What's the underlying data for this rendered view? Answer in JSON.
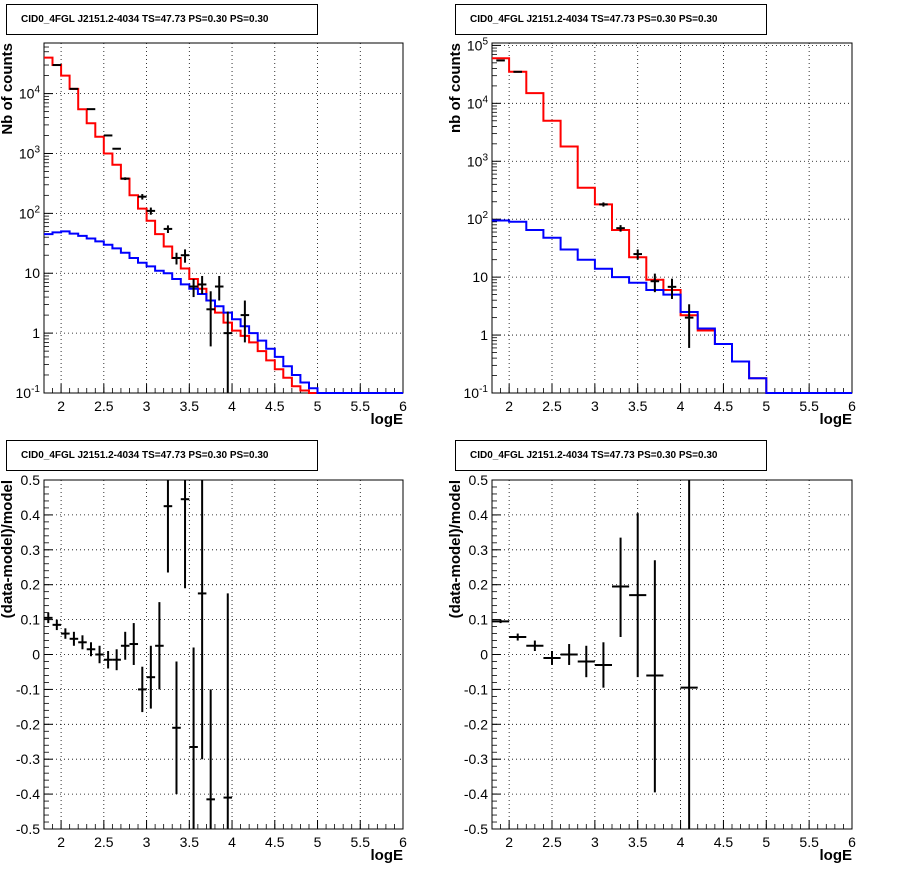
{
  "chart_data": [
    {
      "type": "histogram",
      "title": "CID0_4FGL J2151.2-4034 TS=47.73 PS=0.30 PS=0.30",
      "xlabel": "logE",
      "ylabel": "Nb of counts",
      "log_y": true,
      "xlim": [
        1.8,
        6.0
      ],
      "ylim": [
        0.1,
        70000
      ],
      "grid": true,
      "xticks": [
        "2",
        "2.5",
        "3",
        "3.5",
        "4",
        "4.5",
        "5",
        "5.5",
        "6"
      ],
      "yticks": [
        "10^{-1}",
        "1",
        "10",
        "10^{2}",
        "10^{3}",
        "10^{4}"
      ],
      "bin_edges": [
        1.8,
        1.9,
        2.0,
        2.1,
        2.2,
        2.3,
        2.4,
        2.5,
        2.6,
        2.7,
        2.8,
        2.9,
        3.0,
        3.1,
        3.2,
        3.3,
        3.4,
        3.5,
        3.6,
        3.7,
        3.8,
        3.9,
        4.0,
        4.1,
        4.2,
        4.3,
        4.4,
        4.5,
        4.6,
        4.7,
        4.8,
        4.9,
        5.0,
        5.1,
        5.2,
        5.3,
        5.4,
        5.5,
        5.6,
        5.7,
        5.8,
        5.9,
        6.0
      ],
      "series": [
        {
          "color": "#ff0000",
          "values": [
            40000,
            30000,
            20000,
            12000,
            5500,
            3200,
            1900,
            1000,
            650,
            380,
            200,
            120,
            75,
            45,
            28,
            18,
            12,
            8,
            5.5,
            3.5,
            2.2,
            1.5,
            1.1,
            0.9,
            0.7,
            0.5,
            0.35,
            0.25,
            0.18,
            0.13,
            0.11,
            0.1,
            0.1,
            0.1,
            0.1,
            0.1,
            0.1,
            0.1,
            0.1,
            0.1,
            0.1,
            0.1
          ]
        },
        {
          "color": "#0000ff",
          "values": [
            45,
            48,
            50,
            46,
            42,
            38,
            34,
            30,
            26,
            22,
            18,
            15,
            13,
            11,
            10,
            8,
            6.5,
            5.5,
            4.5,
            3.5,
            2.8,
            2.2,
            1.7,
            1.3,
            1.0,
            0.75,
            0.55,
            0.4,
            0.28,
            0.2,
            0.15,
            0.12,
            0.1,
            0.1,
            0.1,
            0.1,
            0.1,
            0.1,
            0.1,
            0.1,
            0.1,
            0.1
          ]
        }
      ],
      "points": [
        {
          "x": 1.95,
          "y": 30000,
          "ey": [
            29800,
            30200
          ]
        },
        {
          "x": 2.15,
          "y": 12000,
          "ey": [
            11800,
            12200
          ]
        },
        {
          "x": 2.35,
          "y": 5500,
          "ey": [
            5400,
            5600
          ]
        },
        {
          "x": 2.55,
          "y": 2000,
          "ey": [
            1950,
            2050
          ]
        },
        {
          "x": 2.65,
          "y": 1200,
          "ey": [
            1170,
            1230
          ]
        },
        {
          "x": 2.75,
          "y": 380,
          "ey": [
            360,
            400
          ]
        },
        {
          "x": 2.95,
          "y": 190,
          "ey": [
            170,
            210
          ]
        },
        {
          "x": 3.05,
          "y": 110,
          "ey": [
            95,
            125
          ]
        },
        {
          "x": 3.25,
          "y": 55,
          "ey": [
            47,
            63
          ]
        },
        {
          "x": 3.35,
          "y": 18,
          "ey": [
            14,
            22
          ]
        },
        {
          "x": 3.45,
          "y": 20,
          "ey": [
            15,
            25
          ]
        },
        {
          "x": 3.55,
          "y": 6,
          "ey": [
            4,
            8
          ]
        },
        {
          "x": 3.65,
          "y": 6.5,
          "ey": [
            4.5,
            9
          ]
        },
        {
          "x": 3.75,
          "y": 2.5,
          "ey": [
            0.6,
            5
          ]
        },
        {
          "x": 3.85,
          "y": 6,
          "ey": [
            3.5,
            9
          ]
        },
        {
          "x": 3.95,
          "y": 1,
          "ey": [
            0.1,
            2.3
          ]
        },
        {
          "x": 4.15,
          "y": 2,
          "ey": [
            0.7,
            3.5
          ]
        }
      ]
    },
    {
      "type": "histogram",
      "title": "CID0_4FGL J2151.2-4034 TS=47.73 PS=0.30 PS=0.30",
      "xlabel": "logE",
      "ylabel": "nb of counts",
      "log_y": true,
      "xlim": [
        1.8,
        6.0
      ],
      "ylim": [
        0.1,
        110000
      ],
      "grid": true,
      "xticks": [
        "2",
        "2.5",
        "3",
        "3.5",
        "4",
        "4.5",
        "5",
        "5.5",
        "6"
      ],
      "yticks": [
        "10^{-1}",
        "1",
        "10",
        "10^{2}",
        "10^{3}",
        "10^{4}",
        "10^{5}"
      ],
      "bin_edges": [
        1.8,
        2.0,
        2.2,
        2.4,
        2.6,
        2.8,
        3.0,
        3.2,
        3.4,
        3.6,
        3.8,
        4.0,
        4.2,
        4.4,
        4.6,
        4.8,
        5.0,
        5.2,
        5.4,
        5.6,
        5.8,
        6.0
      ],
      "series": [
        {
          "color": "#ff0000",
          "values": [
            60000,
            35000,
            15000,
            5000,
            1800,
            350,
            180,
            65,
            22,
            9,
            6,
            2.2,
            1.2,
            0.7,
            0.35,
            0.18,
            0.1,
            0.1,
            0.1,
            0.1,
            0.1
          ]
        },
        {
          "color": "#0000ff",
          "values": [
            95,
            90,
            65,
            48,
            30,
            20,
            14,
            10,
            8,
            6,
            5,
            2.5,
            1.3,
            0.7,
            0.35,
            0.18,
            0.1,
            0.1,
            0.1,
            0.1,
            0.1
          ]
        }
      ],
      "points": [
        {
          "x": 1.9,
          "y": 55000,
          "ey": [
            54500,
            55500
          ]
        },
        {
          "x": 2.1,
          "y": 35000,
          "ey": [
            34600,
            35400
          ]
        },
        {
          "x": 3.1,
          "y": 180,
          "ey": [
            165,
            195
          ]
        },
        {
          "x": 3.3,
          "y": 70,
          "ey": [
            61,
            79
          ]
        },
        {
          "x": 3.5,
          "y": 25,
          "ey": [
            20,
            30
          ]
        },
        {
          "x": 3.7,
          "y": 8.5,
          "ey": [
            5.5,
            11.5
          ]
        },
        {
          "x": 3.9,
          "y": 6.8,
          "ey": [
            4.2,
            9.4
          ]
        },
        {
          "x": 4.1,
          "y": 2,
          "ey": [
            0.6,
            3.4
          ]
        }
      ]
    },
    {
      "type": "scatter",
      "title": "CID0_4FGL J2151.2-4034 TS=47.73 PS=0.30 PS=0.30",
      "xlabel": "logE",
      "ylabel": "(data-model)/model",
      "xlim": [
        1.8,
        6.0
      ],
      "ylim": [
        -0.5,
        0.5
      ],
      "grid": true,
      "xticks": [
        "2",
        "2.5",
        "3",
        "3.5",
        "4",
        "4.5",
        "5",
        "5.5",
        "6"
      ],
      "yticks": [
        "-0.5",
        "-0.4",
        "-0.3",
        "-0.2",
        "-0.1",
        "0",
        "0.1",
        "0.2",
        "0.3",
        "0.4",
        "0.5"
      ],
      "points": [
        {
          "x": 1.85,
          "y": 0.105,
          "ex": 0.05,
          "ey": [
            0.09,
            0.12
          ]
        },
        {
          "x": 1.95,
          "y": 0.085,
          "ex": 0.05,
          "ey": [
            0.07,
            0.1
          ]
        },
        {
          "x": 2.05,
          "y": 0.06,
          "ex": 0.05,
          "ey": [
            0.045,
            0.075
          ]
        },
        {
          "x": 2.15,
          "y": 0.045,
          "ex": 0.05,
          "ey": [
            0.025,
            0.065
          ]
        },
        {
          "x": 2.25,
          "y": 0.035,
          "ex": 0.05,
          "ey": [
            0.015,
            0.055
          ]
        },
        {
          "x": 2.35,
          "y": 0.015,
          "ex": 0.05,
          "ey": [
            -0.005,
            0.035
          ]
        },
        {
          "x": 2.45,
          "y": 0.0,
          "ex": 0.05,
          "ey": [
            -0.025,
            0.025
          ]
        },
        {
          "x": 2.55,
          "y": -0.015,
          "ex": 0.05,
          "ey": [
            -0.04,
            0.01
          ]
        },
        {
          "x": 2.65,
          "y": -0.015,
          "ex": 0.05,
          "ey": [
            -0.045,
            0.015
          ]
        },
        {
          "x": 2.75,
          "y": 0.025,
          "ex": 0.05,
          "ey": [
            -0.015,
            0.065
          ]
        },
        {
          "x": 2.85,
          "y": 0.03,
          "ex": 0.05,
          "ey": [
            -0.03,
            0.09
          ]
        },
        {
          "x": 2.95,
          "y": -0.1,
          "ex": 0.05,
          "ey": [
            -0.165,
            -0.035
          ]
        },
        {
          "x": 3.05,
          "y": -0.065,
          "ex": 0.05,
          "ey": [
            -0.155,
            0.025
          ]
        },
        {
          "x": 3.15,
          "y": 0.025,
          "ex": 0.05,
          "ey": [
            -0.1,
            0.15
          ]
        },
        {
          "x": 3.25,
          "y": 0.425,
          "ex": 0.05,
          "ey": [
            0.235,
            0.615
          ]
        },
        {
          "x": 3.35,
          "y": -0.21,
          "ex": 0.05,
          "ey": [
            -0.4,
            -0.02
          ]
        },
        {
          "x": 3.45,
          "y": 0.445,
          "ex": 0.05,
          "ey": [
            0.19,
            0.7
          ]
        },
        {
          "x": 3.55,
          "y": -0.265,
          "ex": 0.05,
          "ey": [
            -0.55,
            0.02
          ]
        },
        {
          "x": 3.65,
          "y": 0.175,
          "ex": 0.05,
          "ey": [
            -0.3,
            0.65
          ]
        },
        {
          "x": 3.75,
          "y": -0.415,
          "ex": 0.05,
          "ey": [
            -0.55,
            -0.1
          ]
        },
        {
          "x": 3.95,
          "y": -0.41,
          "ex": 0.05,
          "ey": [
            -0.55,
            0.175
          ]
        }
      ]
    },
    {
      "type": "scatter",
      "title": "CID0_4FGL J2151.2-4034 TS=47.73 PS=0.30 PS=0.30",
      "xlabel": "logE",
      "ylabel": "(data-model)/model",
      "xlim": [
        1.8,
        6.0
      ],
      "ylim": [
        -0.5,
        0.5
      ],
      "grid": true,
      "xticks": [
        "2",
        "2.5",
        "3",
        "3.5",
        "4",
        "4.5",
        "5",
        "5.5",
        "6"
      ],
      "yticks": [
        "-0.5",
        "-0.4",
        "-0.3",
        "-0.2",
        "-0.1",
        "0",
        "0.1",
        "0.2",
        "0.3",
        "0.4",
        "0.5"
      ],
      "points": [
        {
          "x": 1.9,
          "y": 0.095,
          "ex": 0.1,
          "ey": [
            0.09,
            0.1
          ]
        },
        {
          "x": 2.1,
          "y": 0.05,
          "ex": 0.1,
          "ey": [
            0.04,
            0.06
          ]
        },
        {
          "x": 2.3,
          "y": 0.025,
          "ex": 0.1,
          "ey": [
            0.01,
            0.04
          ]
        },
        {
          "x": 2.5,
          "y": -0.01,
          "ex": 0.1,
          "ey": [
            -0.03,
            0.01
          ]
        },
        {
          "x": 2.7,
          "y": 0.0,
          "ex": 0.1,
          "ey": [
            -0.03,
            0.03
          ]
        },
        {
          "x": 2.9,
          "y": -0.02,
          "ex": 0.1,
          "ey": [
            -0.065,
            0.025
          ]
        },
        {
          "x": 3.1,
          "y": -0.03,
          "ex": 0.1,
          "ey": [
            -0.095,
            0.035
          ]
        },
        {
          "x": 3.3,
          "y": 0.195,
          "ex": 0.1,
          "ey": [
            0.05,
            0.335
          ]
        },
        {
          "x": 3.5,
          "y": 0.17,
          "ex": 0.1,
          "ey": [
            -0.065,
            0.405
          ]
        },
        {
          "x": 3.7,
          "y": -0.06,
          "ex": 0.1,
          "ey": [
            -0.395,
            0.27
          ]
        },
        {
          "x": 4.1,
          "y": -0.095,
          "ex": 0.1,
          "ey": [
            -0.55,
            0.55
          ]
        }
      ]
    }
  ]
}
